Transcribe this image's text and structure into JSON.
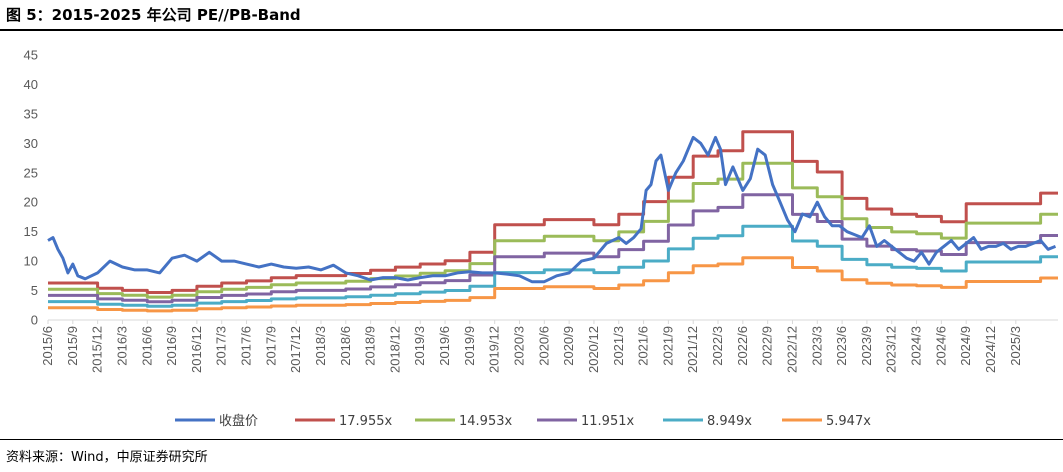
{
  "figure": {
    "title": "图 5：2015-2025 年公司 PE//PB-Band",
    "source": "资料来源：Wind，中原证券研究所"
  },
  "chart_data": {
    "type": "line",
    "title": "图 5：2015-2025 年公司 PE//PB-Band",
    "xlabel": "",
    "ylabel": "",
    "ylim": [
      0,
      45
    ],
    "yticks": [
      0,
      5,
      10,
      15,
      20,
      25,
      30,
      35,
      40,
      45
    ],
    "grid": false,
    "legend_position": "bottom",
    "x_tick_labels": [
      "2015/6",
      "2015/9",
      "2015/12",
      "2016/3",
      "2016/6",
      "2016/9",
      "2016/12",
      "2017/3",
      "2017/6",
      "2017/9",
      "2017/12",
      "2018/3",
      "2018/6",
      "2018/9",
      "2018/12",
      "2019/3",
      "2019/6",
      "2019/9",
      "2019/12",
      "2020/3",
      "2020/6",
      "2020/9",
      "2020/12",
      "2021/3",
      "2021/6",
      "2021/9",
      "2021/12",
      "2022/3",
      "2022/6",
      "2022/9",
      "2022/12",
      "2023/3",
      "2023/6",
      "2023/9",
      "2023/12",
      "2024/3",
      "2024/6",
      "2024/9",
      "2024/12",
      "2025/3"
    ],
    "x_range": [
      0,
      40.7
    ],
    "band_levels": [
      0.35,
      0.35,
      0.3,
      0.28,
      0.26,
      0.28,
      0.32,
      0.35,
      0.37,
      0.4,
      0.42,
      0.42,
      0.44,
      0.47,
      0.5,
      0.53,
      0.56,
      0.64,
      0.9,
      0.9,
      0.95,
      0.95,
      0.9,
      1.0,
      1.12,
      1.35,
      1.55,
      1.6,
      1.78,
      1.78,
      1.5,
      1.4,
      1.15,
      1.05,
      1.0,
      0.98,
      0.93,
      1.1,
      1.1,
      1.1,
      1.2
    ],
    "series": [
      {
        "name": "收盘价",
        "color": "#4472C4",
        "x": [
          0,
          0.2,
          0.4,
          0.6,
          0.8,
          1,
          1.2,
          1.5,
          2,
          2.5,
          3,
          3.5,
          4,
          4.5,
          5,
          5.5,
          6,
          6.5,
          7,
          7.5,
          8,
          8.5,
          9,
          9.5,
          10,
          10.5,
          11,
          11.5,
          12,
          12.5,
          13,
          13.5,
          14,
          14.5,
          15,
          15.5,
          16,
          16.5,
          17,
          17.5,
          18,
          18.5,
          19,
          19.5,
          20,
          20.5,
          21,
          21.5,
          22,
          22.5,
          23,
          23.3,
          23.6,
          23.9,
          24.1,
          24.3,
          24.5,
          24.7,
          25,
          25.3,
          25.6,
          25.8,
          26,
          26.3,
          26.6,
          26.9,
          27.1,
          27.3,
          27.6,
          28,
          28.3,
          28.6,
          28.9,
          29.2,
          29.5,
          29.8,
          30.1,
          30.4,
          30.7,
          31,
          31.3,
          31.6,
          31.9,
          32.2,
          32.5,
          32.8,
          33.1,
          33.4,
          33.7,
          34,
          34.3,
          34.6,
          34.9,
          35.2,
          35.5,
          35.8,
          36.1,
          36.4,
          36.7,
          37,
          37.3,
          37.6,
          37.9,
          38.2,
          38.5,
          38.8,
          39.1,
          39.4,
          39.7,
          40,
          40.3,
          40.6
        ],
        "values": [
          13.5,
          14,
          12,
          10.5,
          8,
          9.5,
          7.5,
          7,
          8,
          10,
          9,
          8.5,
          8.5,
          8,
          10.5,
          11,
          10,
          11.5,
          10,
          10,
          9.5,
          9,
          9.5,
          9,
          8.8,
          9,
          8.5,
          9.3,
          8,
          7.5,
          6.8,
          7.2,
          7.2,
          6.8,
          7.2,
          7.5,
          7.5,
          8,
          8.2,
          8,
          8,
          7.8,
          7.5,
          6.5,
          6.5,
          7.5,
          8,
          10,
          10.5,
          13,
          14,
          13,
          14,
          15.5,
          22,
          23,
          27,
          28,
          22,
          25,
          27,
          29,
          31,
          30,
          28,
          31,
          29,
          23,
          26,
          22,
          24,
          29,
          28,
          23,
          20,
          17,
          15,
          18,
          17.5,
          20,
          17.5,
          16,
          16,
          15,
          14.5,
          14,
          16,
          12.5,
          13.5,
          12.5,
          11.5,
          10.5,
          10,
          11.5,
          9.5,
          11.5,
          12.5,
          13.5,
          12,
          13,
          14,
          12,
          12.5,
          12.5,
          13,
          12,
          12.5,
          12.5,
          13,
          13.5,
          12,
          12.5
        ]
      },
      {
        "name": "17.955x",
        "color": "#C0504D",
        "multiplier": 17.955
      },
      {
        "name": "14.953x",
        "color": "#9BBB59",
        "multiplier": 14.953
      },
      {
        "name": "11.951x",
        "color": "#8064A2",
        "multiplier": 11.951
      },
      {
        "name": "8.949x",
        "color": "#4BACC6",
        "multiplier": 8.949
      },
      {
        "name": "5.947x",
        "color": "#F79646",
        "multiplier": 5.947
      }
    ]
  }
}
